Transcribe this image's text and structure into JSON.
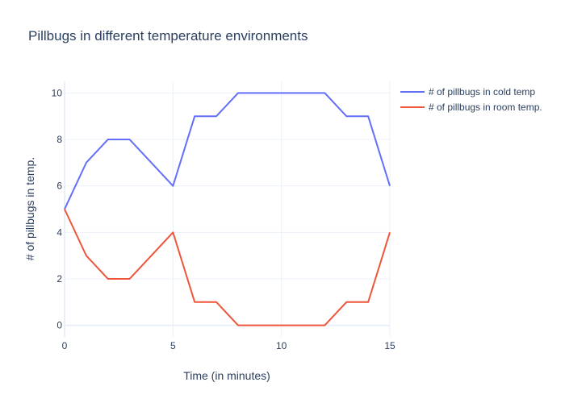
{
  "chart_data": {
    "type": "line",
    "title": "Pillbugs in different temperature environments",
    "xlabel": "Time (in minutes)",
    "ylabel": "# of pillbugs in temp.",
    "xlim": [
      0,
      15
    ],
    "ylim": [
      -0.5,
      10.5
    ],
    "x_ticks": [
      0,
      5,
      10,
      15
    ],
    "y_ticks": [
      0,
      2,
      4,
      6,
      8,
      10
    ],
    "grid": true,
    "legend_position": "top-right",
    "x": [
      0,
      1,
      2,
      3,
      4,
      5,
      6,
      7,
      8,
      9,
      10,
      11,
      12,
      13,
      14,
      15
    ],
    "series": [
      {
        "name": "# of pillbugs in cold temp",
        "color": "#636efa",
        "values": [
          5,
          7,
          8,
          8,
          7,
          6,
          9,
          9,
          10,
          10,
          10,
          10,
          10,
          9,
          9,
          6
        ]
      },
      {
        "name": "# of pillbugs in room temp.",
        "color": "#ef553b",
        "values": [
          5,
          3,
          2,
          2,
          3,
          4,
          1,
          1,
          0,
          0,
          0,
          0,
          0,
          1,
          1,
          4
        ]
      }
    ]
  }
}
